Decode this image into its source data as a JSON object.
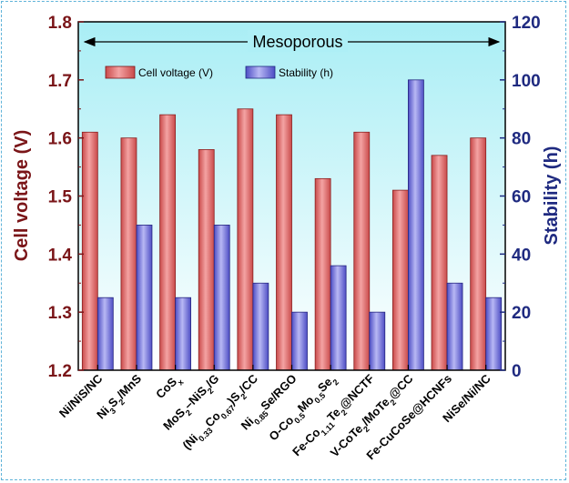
{
  "chart_data": {
    "type": "bar",
    "categories_text": [
      "Ni/NiS/NC",
      "Ni3S2/MnS",
      "CoSx",
      "MoS2–NiS2/G",
      "(Ni0.33Co0.67)S2/CC",
      "Ni0.85Se/RGO",
      "O-Co0.5Mo0.5Se2",
      "Fe-Co1.11Te2@NCTF",
      "V-CoTe2/MoTe2@CC",
      "Fe-CuCoSe@HCNFs",
      "NiSe/Ni/NC"
    ],
    "categories": [
      [
        {
          "t": "Ni/NiS/NC"
        }
      ],
      [
        {
          "t": "Ni"
        },
        {
          "t": "3",
          "s": "sub"
        },
        {
          "t": "S"
        },
        {
          "t": "2",
          "s": "sub"
        },
        {
          "t": "/MnS"
        }
      ],
      [
        {
          "t": "CoS"
        },
        {
          "t": "x",
          "s": "sub"
        }
      ],
      [
        {
          "t": "MoS"
        },
        {
          "t": "2",
          "s": "sub"
        },
        {
          "t": "–NiS"
        },
        {
          "t": "2",
          "s": "sub"
        },
        {
          "t": "/G"
        }
      ],
      [
        {
          "t": "(Ni"
        },
        {
          "t": "0.33",
          "s": "sub"
        },
        {
          "t": "Co"
        },
        {
          "t": "0.67",
          "s": "sub"
        },
        {
          "t": ")S"
        },
        {
          "t": "2",
          "s": "sub"
        },
        {
          "t": "/CC"
        }
      ],
      [
        {
          "t": "Ni"
        },
        {
          "t": "0.85",
          "s": "sub"
        },
        {
          "t": "Se/RGO"
        }
      ],
      [
        {
          "t": "O-Co"
        },
        {
          "t": "0.5",
          "s": "sub"
        },
        {
          "t": "Mo"
        },
        {
          "t": "0.5",
          "s": "sub"
        },
        {
          "t": "Se"
        },
        {
          "t": "2",
          "s": "sub"
        }
      ],
      [
        {
          "t": "Fe-Co"
        },
        {
          "t": "1.11",
          "s": "sub"
        },
        {
          "t": "Te"
        },
        {
          "t": "2",
          "s": "sub"
        },
        {
          "t": "@NCTF"
        }
      ],
      [
        {
          "t": "V-CoTe"
        },
        {
          "t": "2",
          "s": "sub"
        },
        {
          "t": "/MoTe"
        },
        {
          "t": "2",
          "s": "sub"
        },
        {
          "t": "@CC"
        }
      ],
      [
        {
          "t": "Fe-CuCoSe@HCNFs"
        }
      ],
      [
        {
          "t": "NiSe/Ni/NC"
        }
      ]
    ],
    "series": [
      {
        "name": "Cell voltage (V)",
        "axis": "left",
        "color": "#e06565",
        "values": [
          1.61,
          1.6,
          1.64,
          1.58,
          1.65,
          1.64,
          1.53,
          1.61,
          1.51,
          1.57,
          1.6
        ]
      },
      {
        "name": "Stability (h)",
        "axis": "right",
        "color": "#6b6bd6",
        "values": [
          25,
          50,
          25,
          50,
          30,
          20,
          36,
          20,
          100,
          30,
          25
        ]
      }
    ],
    "ylabel": "Cell voltage (V)",
    "ylabel_right": "Stability (h)",
    "ylim": [
      1.2,
      1.8
    ],
    "ylim_right": [
      0,
      120
    ],
    "yticks": [
      1.2,
      1.3,
      1.4,
      1.5,
      1.6,
      1.7,
      1.8
    ],
    "yticks_right": [
      0,
      20,
      40,
      60,
      80,
      100,
      120
    ],
    "yticks_labels": [
      "1.2",
      "1.3",
      "1.4",
      "1.5",
      "1.6",
      "1.7",
      "1.8"
    ],
    "yticks_right_labels": [
      "0",
      "20",
      "40",
      "60",
      "80",
      "100",
      "120"
    ],
    "annotation": "Mesoporous",
    "legend": "top-left",
    "left_axis_color": "#7a1518",
    "right_axis_color": "#1f2a80",
    "background": "gradient light-cyan to white"
  }
}
